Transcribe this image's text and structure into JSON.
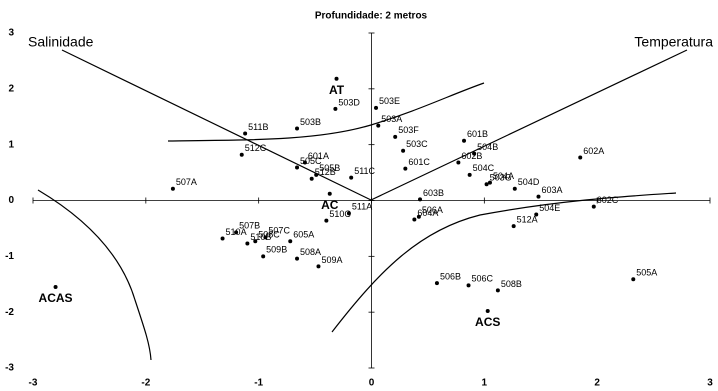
{
  "chart_data": {
    "type": "scatter",
    "title": "Profundidade: 2 metros",
    "annotations": [
      "Salinidade",
      "Temperatura"
    ],
    "xlim": [
      -3,
      3
    ],
    "xticks": [
      -3,
      -2,
      -1,
      0,
      1,
      2,
      3
    ],
    "ylim": [
      -3,
      3
    ],
    "yticks": [
      -3,
      -2,
      -1,
      0,
      1,
      2,
      3
    ],
    "color": "#000000",
    "points": [
      {
        "label": "AT",
        "x": -0.31,
        "y": 2.18,
        "bold": true
      },
      {
        "label": "503D",
        "x": -0.32,
        "y": 1.64
      },
      {
        "label": "503E",
        "x": 0.04,
        "y": 1.66
      },
      {
        "label": "503B",
        "x": -0.66,
        "y": 1.29
      },
      {
        "label": "503A",
        "x": 0.06,
        "y": 1.34
      },
      {
        "label": "511B",
        "x": -1.12,
        "y": 1.2
      },
      {
        "label": "503F",
        "x": 0.21,
        "y": 1.14
      },
      {
        "label": "601B",
        "x": 0.82,
        "y": 1.07
      },
      {
        "label": "503C",
        "x": 0.28,
        "y": 0.89
      },
      {
        "label": "512C",
        "x": -1.15,
        "y": 0.82
      },
      {
        "label": "601A",
        "x": -0.59,
        "y": 0.68
      },
      {
        "label": "504B",
        "x": 0.91,
        "y": 0.84
      },
      {
        "label": "505C",
        "x": -0.66,
        "y": 0.59
      },
      {
        "label": "505B",
        "x": -0.49,
        "y": 0.46
      },
      {
        "label": "601C",
        "x": 0.3,
        "y": 0.57
      },
      {
        "label": "602B",
        "x": 0.77,
        "y": 0.68
      },
      {
        "label": "602A",
        "x": 1.85,
        "y": 0.77
      },
      {
        "label": "512B",
        "x": -0.53,
        "y": 0.39
      },
      {
        "label": "511C",
        "x": -0.18,
        "y": 0.41
      },
      {
        "label": "504C",
        "x": 0.87,
        "y": 0.46
      },
      {
        "label": "504A",
        "x": 1.05,
        "y": 0.32
      },
      {
        "label": "504D",
        "x": 1.27,
        "y": 0.21
      },
      {
        "label": "503G",
        "x": 1.02,
        "y": 0.29
      },
      {
        "label": "507A",
        "x": -1.76,
        "y": 0.21
      },
      {
        "label": "AC",
        "x": -0.37,
        "y": 0.12,
        "bold": true
      },
      {
        "label": "603B",
        "x": 0.43,
        "y": 0.02
      },
      {
        "label": "603A",
        "x": 1.48,
        "y": 0.07
      },
      {
        "label": "602C",
        "x": 1.97,
        "y": -0.11
      },
      {
        "label": "511A",
        "x": -0.2,
        "y": -0.23
      },
      {
        "label": "506A",
        "x": 0.42,
        "y": -0.29
      },
      {
        "label": "604A",
        "x": 0.38,
        "y": -0.34
      },
      {
        "label": "504E",
        "x": 1.46,
        "y": -0.25
      },
      {
        "label": "512A",
        "x": 1.26,
        "y": -0.46
      },
      {
        "label": "510C",
        "x": -0.4,
        "y": -0.36
      },
      {
        "label": "507B",
        "x": -1.2,
        "y": -0.57
      },
      {
        "label": "507C",
        "x": -0.94,
        "y": -0.66
      },
      {
        "label": "510A",
        "x": -1.32,
        "y": -0.68
      },
      {
        "label": "510B",
        "x": -1.1,
        "y": -0.77
      },
      {
        "label": "508C",
        "x": -1.03,
        "y": -0.73
      },
      {
        "label": "605A",
        "x": -0.72,
        "y": -0.73
      },
      {
        "label": "509B",
        "x": -0.96,
        "y": -1.0
      },
      {
        "label": "508A",
        "x": -0.66,
        "y": -1.04
      },
      {
        "label": "509A",
        "x": -0.47,
        "y": -1.18
      },
      {
        "label": "ACAS",
        "x": -2.8,
        "y": -1.55,
        "bold": true
      },
      {
        "label": "506B",
        "x": 0.58,
        "y": -1.48
      },
      {
        "label": "506C",
        "x": 0.86,
        "y": -1.52
      },
      {
        "label": "508B",
        "x": 1.12,
        "y": -1.61
      },
      {
        "label": "505A",
        "x": 2.32,
        "y": -1.41
      },
      {
        "label": "ACS",
        "x": 1.03,
        "y": -1.98,
        "bold": true
      }
    ]
  }
}
